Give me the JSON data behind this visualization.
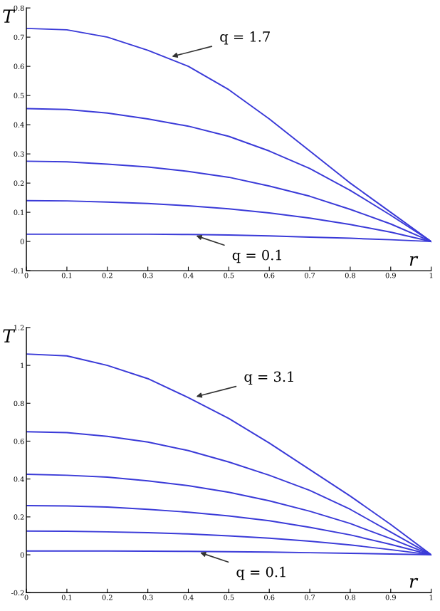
{
  "chart_data": [
    {
      "type": "line",
      "xlabel": "r",
      "ylabel": "T",
      "xlim": [
        0,
        1
      ],
      "ylim": [
        -0.1,
        0.8
      ],
      "xticks": [
        0,
        0.1,
        0.2,
        0.3,
        0.4,
        0.5,
        0.6,
        0.7,
        0.8,
        0.9,
        1
      ],
      "yticks": [
        -0.1,
        0,
        0.1,
        0.2,
        0.3,
        0.4,
        0.5,
        0.6,
        0.7,
        0.8
      ],
      "x": [
        0,
        0.1,
        0.2,
        0.3,
        0.4,
        0.5,
        0.6,
        0.7,
        0.8,
        0.9,
        1
      ],
      "grid": false,
      "marker": "none",
      "line_style": "solid",
      "series": [
        {
          "color": "#3a3ad8",
          "values": [
            0.73,
            0.725,
            0.7,
            0.655,
            0.6,
            0.52,
            0.42,
            0.31,
            0.2,
            0.1,
            0
          ]
        },
        {
          "color": "#3a3ad8",
          "values": [
            0.455,
            0.452,
            0.44,
            0.42,
            0.395,
            0.36,
            0.31,
            0.25,
            0.175,
            0.09,
            0
          ]
        },
        {
          "color": "#3a3ad8",
          "values": [
            0.275,
            0.273,
            0.265,
            0.255,
            0.24,
            0.22,
            0.19,
            0.155,
            0.11,
            0.06,
            0
          ]
        },
        {
          "color": "#3a3ad8",
          "values": [
            0.14,
            0.139,
            0.135,
            0.13,
            0.122,
            0.112,
            0.098,
            0.08,
            0.058,
            0.032,
            0
          ]
        },
        {
          "color": "#3a3ad8",
          "values": [
            0.025,
            0.025,
            0.025,
            0.025,
            0.024,
            0.022,
            0.019,
            0.015,
            0.011,
            0.006,
            0
          ]
        }
      ],
      "annotations": [
        {
          "text": "q = 1.7",
          "x": 0.35,
          "y": 0.63
        },
        {
          "text": "q = 0.1",
          "x": 0.41,
          "y": 0.024
        }
      ]
    },
    {
      "type": "line",
      "xlabel": "r",
      "ylabel": "T",
      "xlim": [
        0,
        1
      ],
      "ylim": [
        -0.2,
        1.2
      ],
      "xticks": [
        0,
        0.1,
        0.2,
        0.3,
        0.4,
        0.5,
        0.6,
        0.7,
        0.8,
        0.9,
        1
      ],
      "yticks": [
        -0.2,
        0,
        0.2,
        0.4,
        0.6,
        0.8,
        1,
        1.2
      ],
      "x": [
        0,
        0.1,
        0.2,
        0.3,
        0.4,
        0.5,
        0.6,
        0.7,
        0.8,
        0.9,
        1
      ],
      "grid": false,
      "marker": "none",
      "line_style": "solid",
      "series": [
        {
          "color": "#3a3ad8",
          "values": [
            1.06,
            1.05,
            1.0,
            0.93,
            0.83,
            0.72,
            0.59,
            0.45,
            0.31,
            0.16,
            0
          ]
        },
        {
          "color": "#3a3ad8",
          "values": [
            0.65,
            0.645,
            0.625,
            0.595,
            0.55,
            0.49,
            0.42,
            0.34,
            0.24,
            0.12,
            0
          ]
        },
        {
          "color": "#3a3ad8",
          "values": [
            0.425,
            0.42,
            0.41,
            0.39,
            0.365,
            0.33,
            0.285,
            0.23,
            0.165,
            0.085,
            0
          ]
        },
        {
          "color": "#3a3ad8",
          "values": [
            0.26,
            0.258,
            0.252,
            0.24,
            0.225,
            0.205,
            0.18,
            0.145,
            0.105,
            0.055,
            0
          ]
        },
        {
          "color": "#3a3ad8",
          "values": [
            0.125,
            0.124,
            0.121,
            0.117,
            0.11,
            0.1,
            0.088,
            0.072,
            0.052,
            0.027,
            0
          ]
        },
        {
          "color": "#3a3ad8",
          "values": [
            0.02,
            0.02,
            0.02,
            0.019,
            0.018,
            0.016,
            0.014,
            0.011,
            0.008,
            0.004,
            0
          ]
        }
      ],
      "annotations": [
        {
          "text": "q = 3.1",
          "x": 0.41,
          "y": 0.83
        },
        {
          "text": "q = 0.1",
          "x": 0.42,
          "y": 0.018
        }
      ]
    }
  ]
}
